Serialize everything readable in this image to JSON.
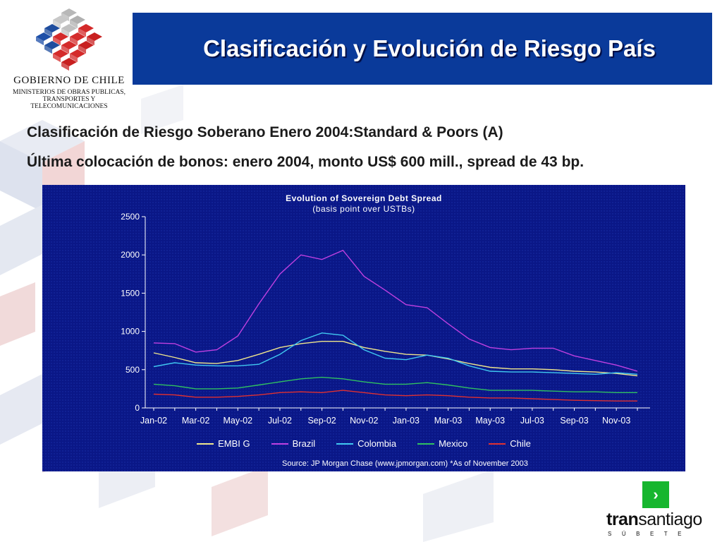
{
  "logo": {
    "org_name": "GOBIERNO DE CHILE",
    "ministry_lines": [
      "MINISTERIOS DE OBRAS PUBLICAS,",
      "TRANSPORTES Y",
      "TELECOMUNICACIONES"
    ]
  },
  "header": {
    "title": "Clasificación y Evolución de Riesgo País"
  },
  "body": {
    "line1": "Clasificación de Riesgo Soberano Enero 2004:Standard & Poors (A)",
    "line2": "Última colocación de bonos: enero 2004, monto US$ 600 mill., spread de 43 bp."
  },
  "chart_data": {
    "type": "line",
    "title": "Evolution of Sovereign Debt Spread",
    "subtitle": "(basis point over USTBs)",
    "x_tick_labels": [
      "Jan-02",
      "Mar-02",
      "May-02",
      "Jul-02",
      "Sep-02",
      "Nov-02",
      "Jan-03",
      "Mar-03",
      "May-03",
      "Jul-03",
      "Sep-03",
      "Nov-03"
    ],
    "x_months": [
      "Jan-02",
      "Feb-02",
      "Mar-02",
      "Apr-02",
      "May-02",
      "Jun-02",
      "Jul-02",
      "Aug-02",
      "Sep-02",
      "Oct-02",
      "Nov-02",
      "Dec-02",
      "Jan-03",
      "Feb-03",
      "Mar-03",
      "Apr-03",
      "May-03",
      "Jun-03",
      "Jul-03",
      "Aug-03",
      "Sep-03",
      "Oct-03",
      "Nov-03",
      "Dec-03"
    ],
    "ylim": [
      0,
      2500
    ],
    "y_ticks": [
      0,
      500,
      1000,
      1500,
      2000,
      2500
    ],
    "grid": false,
    "legend_position": "bottom",
    "series": [
      {
        "name": "EMBI G",
        "color": "#f0e68c",
        "values": [
          720,
          660,
          590,
          580,
          620,
          700,
          790,
          840,
          870,
          870,
          790,
          740,
          700,
          690,
          640,
          580,
          530,
          510,
          510,
          500,
          480,
          470,
          450,
          420
        ]
      },
      {
        "name": "Brazil",
        "color": "#c040e0",
        "values": [
          850,
          840,
          730,
          760,
          940,
          1360,
          1750,
          2000,
          1940,
          2060,
          1720,
          1540,
          1350,
          1310,
          1100,
          900,
          790,
          760,
          780,
          780,
          680,
          620,
          560,
          480
        ]
      },
      {
        "name": "Colombia",
        "color": "#40c8f0",
        "values": [
          540,
          590,
          560,
          550,
          550,
          570,
          700,
          880,
          980,
          950,
          760,
          650,
          630,
          690,
          650,
          550,
          480,
          470,
          470,
          460,
          450,
          440,
          460,
          440
        ]
      },
      {
        "name": "Mexico",
        "color": "#30c060",
        "values": [
          310,
          290,
          250,
          250,
          260,
          300,
          340,
          380,
          400,
          380,
          340,
          310,
          310,
          330,
          300,
          260,
          230,
          230,
          230,
          220,
          210,
          210,
          200,
          200
        ]
      },
      {
        "name": "Chile",
        "color": "#e03030",
        "values": [
          180,
          170,
          140,
          140,
          150,
          170,
          200,
          210,
          200,
          230,
          200,
          170,
          160,
          170,
          160,
          140,
          130,
          130,
          120,
          110,
          100,
          95,
          90,
          90
        ]
      }
    ],
    "source": "Source: JP Morgan Chase (www.jpmorgan.com) *As of November 2003"
  },
  "nav": {
    "next_symbol": "›"
  },
  "brand": {
    "name_bold": "tran",
    "name_rest": "santiago",
    "tagline": "SÚBETE"
  },
  "colors": {
    "banner": "#0a3a9a",
    "chart_bg": "#0a1787",
    "accent_green": "#16b62e"
  }
}
